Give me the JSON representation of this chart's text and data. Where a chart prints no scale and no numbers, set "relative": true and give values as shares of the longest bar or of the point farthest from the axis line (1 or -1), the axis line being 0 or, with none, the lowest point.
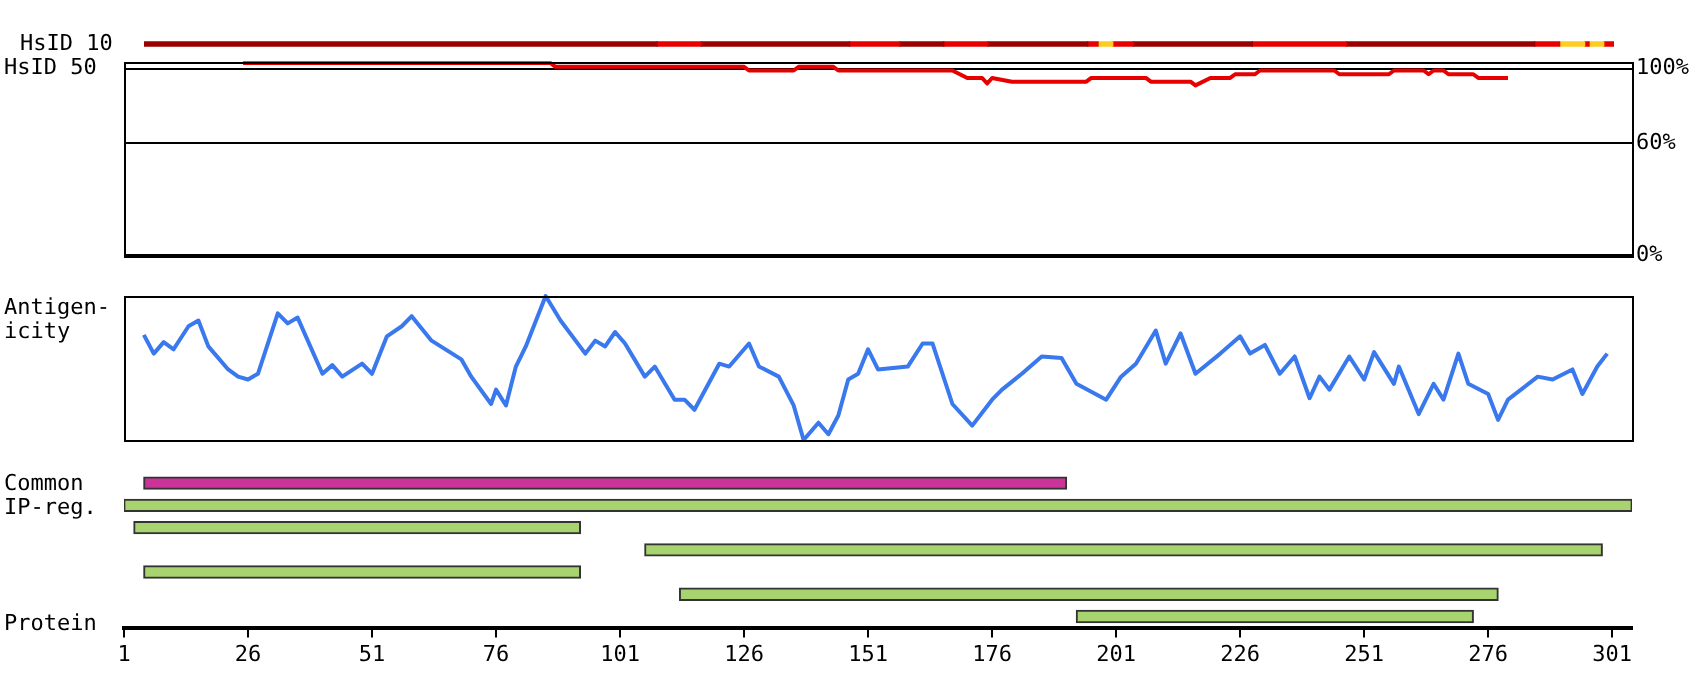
{
  "chart_data": [
    {
      "type": "bar",
      "orientation": "horizontal",
      "stacked": true,
      "relative": true,
      "categories": [
        "HsID 10"
      ],
      "tick_labels": "y",
      "legend": false,
      "series": [
        {
          "color": "#990000",
          "values": [
            0.349
          ]
        },
        {
          "color": "#e60000",
          "values": [
            0.03
          ]
        },
        {
          "color": "#990000",
          "values": [
            0.101
          ]
        },
        {
          "color": "#e60000",
          "values": [
            0.034
          ]
        },
        {
          "color": "#990000",
          "values": [
            0.03
          ]
        },
        {
          "color": "#e60000",
          "values": [
            0.03
          ]
        },
        {
          "color": "#990000",
          "values": [
            0.068
          ]
        },
        {
          "color": "#e60000",
          "values": [
            0.007
          ]
        },
        {
          "color": "#ffcc22",
          "values": [
            0.01
          ]
        },
        {
          "color": "#e60000",
          "values": [
            0.014
          ]
        },
        {
          "color": "#990000",
          "values": [
            0.081
          ]
        },
        {
          "color": "#e60000",
          "values": [
            0.064
          ]
        },
        {
          "color": "#990000",
          "values": [
            0.128
          ]
        },
        {
          "color": "#e60000",
          "values": [
            0.017
          ]
        },
        {
          "color": "#ffcc22",
          "values": [
            0.017
          ]
        },
        {
          "color": "#e60000",
          "values": [
            0.003
          ]
        },
        {
          "color": "#ffcc22",
          "values": [
            0.01
          ]
        },
        {
          "color": "#e60000",
          "values": [
            0.007
          ]
        }
      ]
    },
    {
      "type": "line",
      "ylabel": "HsID 50",
      "xlim": [
        1,
        305
      ],
      "ylim": [
        0,
        104
      ],
      "yticks": [
        {
          "value": 0,
          "label": "0%"
        },
        {
          "value": 60,
          "label": "60%"
        },
        {
          "value": 100,
          "label": "100%"
        }
      ],
      "grid": "y",
      "tick_labels": "y",
      "legend": false,
      "marker": "none",
      "x": [
        25,
        87,
        88,
        126,
        127,
        136,
        137,
        144,
        145,
        168,
        171,
        174,
        175,
        176,
        180,
        195,
        196,
        207,
        208,
        216,
        217,
        220,
        224,
        225,
        229,
        230,
        245,
        246,
        256,
        257,
        263,
        264,
        265,
        267,
        268,
        273,
        274,
        280
      ],
      "series": [
        {
          "color": "#e60000",
          "values": [
            103,
            103,
            101,
            101,
            99,
            99,
            101,
            101,
            99,
            99,
            95,
            95,
            92,
            95,
            93,
            93,
            95,
            95,
            93,
            93,
            91,
            95,
            95,
            97,
            97,
            99,
            99,
            97,
            97,
            99,
            99,
            97,
            99,
            99,
            97,
            97,
            95,
            95
          ]
        }
      ]
    },
    {
      "type": "line",
      "ylabel": "Antigen-icity",
      "relative": true,
      "xlim": [
        1,
        305
      ],
      "tick_labels": false,
      "legend": false,
      "marker": "none",
      "x": [
        5,
        7,
        9,
        11,
        14,
        16,
        18,
        22,
        24,
        26,
        28,
        32,
        34,
        36,
        41,
        43,
        45,
        49,
        51,
        54,
        57,
        59,
        63,
        69,
        71,
        75,
        76,
        78,
        80,
        82,
        86,
        89,
        94,
        96,
        98,
        100,
        102,
        106,
        108,
        112,
        114,
        116,
        121,
        123,
        127,
        129,
        133,
        136,
        138,
        141,
        143,
        145,
        147,
        149,
        151,
        153,
        159,
        162,
        164,
        168,
        172,
        176,
        178,
        182,
        186,
        190,
        193,
        199,
        202,
        205,
        209,
        211,
        214,
        217,
        222,
        226,
        228,
        231,
        234,
        237,
        240,
        242,
        244,
        248,
        251,
        253,
        257,
        258,
        262,
        265,
        267,
        270,
        272,
        276,
        278,
        280,
        286,
        289,
        293,
        295,
        298,
        300
      ],
      "series": [
        {
          "color": "#3a78ee",
          "values": [
            0.73,
            0.6,
            0.68,
            0.63,
            0.79,
            0.83,
            0.65,
            0.49,
            0.44,
            0.42,
            0.46,
            0.88,
            0.81,
            0.85,
            0.46,
            0.52,
            0.44,
            0.53,
            0.46,
            0.72,
            0.79,
            0.86,
            0.69,
            0.56,
            0.44,
            0.25,
            0.35,
            0.24,
            0.51,
            0.65,
            1,
            0.83,
            0.6,
            0.69,
            0.65,
            0.75,
            0.67,
            0.44,
            0.51,
            0.28,
            0.28,
            0.21,
            0.53,
            0.51,
            0.67,
            0.51,
            0.44,
            0.24,
            0,
            0.12,
            0.04,
            0.17,
            0.42,
            0.46,
            0.63,
            0.49,
            0.51,
            0.67,
            0.67,
            0.25,
            0.1,
            0.28,
            0.35,
            0.46,
            0.58,
            0.57,
            0.39,
            0.28,
            0.44,
            0.53,
            0.76,
            0.53,
            0.74,
            0.46,
            0.6,
            0.72,
            0.6,
            0.66,
            0.46,
            0.58,
            0.29,
            0.44,
            0.35,
            0.58,
            0.42,
            0.61,
            0.39,
            0.51,
            0.18,
            0.39,
            0.28,
            0.6,
            0.39,
            0.32,
            0.14,
            0.28,
            0.44,
            0.42,
            0.49,
            0.32,
            0.51,
            0.6
          ]
        }
      ]
    },
    {
      "type": "bar",
      "orientation": "horizontal",
      "ylabel": "Common IP-reg.",
      "xlabel": "Protein",
      "categories": [
        null,
        null,
        null,
        null,
        null,
        null,
        null
      ],
      "xlim": [
        1,
        305
      ],
      "xticks": [
        1,
        26,
        51,
        76,
        101,
        126,
        151,
        176,
        201,
        226,
        251,
        276,
        301
      ],
      "tick_labels": "x",
      "legend": false,
      "series": [
        {
          "colors": [
            "#cc3399",
            "#a8d46f",
            "#a8d46f",
            "#a8d46f",
            "#a8d46f",
            "#a8d46f",
            "#a8d46f"
          ],
          "base": [
            5,
            1,
            3,
            106,
            5,
            113,
            193
          ],
          "values": [
            186,
            304,
            90,
            193,
            88,
            165,
            80
          ]
        }
      ]
    }
  ]
}
